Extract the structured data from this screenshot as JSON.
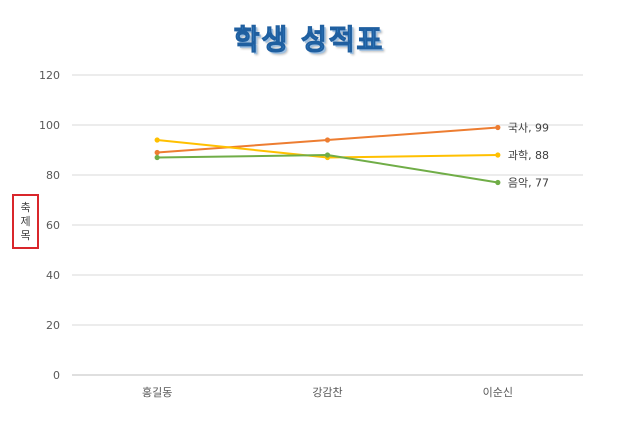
{
  "chart_data": {
    "type": "line",
    "title": "학생 성적표",
    "ylabel": "축 제목",
    "xlabel": "",
    "categories": [
      "홍길동",
      "강감찬",
      "이순신"
    ],
    "ylim": [
      0,
      120
    ],
    "yticks": [
      0,
      20,
      40,
      60,
      80,
      100,
      120
    ],
    "grid": true,
    "series": [
      {
        "name": "국사",
        "values": [
          89,
          94,
          99
        ],
        "color": "#ED7D31"
      },
      {
        "name": "과학",
        "values": [
          94,
          87,
          88
        ],
        "color": "#FFC000"
      },
      {
        "name": "음악",
        "values": [
          87,
          88,
          77
        ],
        "color": "#70AD47"
      }
    ],
    "data_labels": [
      "국사, 99",
      "과학, 88",
      "음악, 77"
    ]
  }
}
